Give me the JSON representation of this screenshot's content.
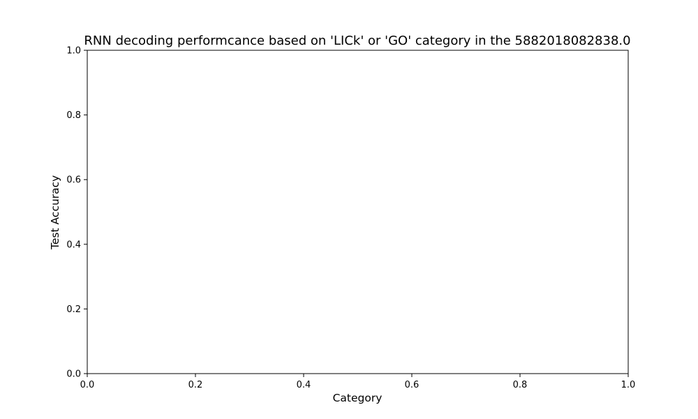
{
  "chart_data": {
    "type": "bar",
    "title": "RNN decoding performcance based on 'LICk' or 'GO' category in the 5882018082838.0",
    "xlabel": "Category",
    "ylabel": "Test Accuracy",
    "xlim": [
      0.0,
      1.0
    ],
    "ylim": [
      0.0,
      1.0
    ],
    "xticks": [
      0.0,
      0.2,
      0.4,
      0.6,
      0.8,
      1.0
    ],
    "yticks": [
      0.0,
      0.2,
      0.4,
      0.6,
      0.8,
      1.0
    ],
    "xtick_labels": [
      "0.0",
      "0.2",
      "0.4",
      "0.6",
      "0.8",
      "1.0"
    ],
    "ytick_labels": [
      "0.0",
      "0.2",
      "0.4",
      "0.6",
      "0.8",
      "1.0"
    ],
    "categories": [],
    "values": [],
    "grid": false,
    "colors": {
      "axes": "#000000",
      "background": "#ffffff"
    }
  }
}
